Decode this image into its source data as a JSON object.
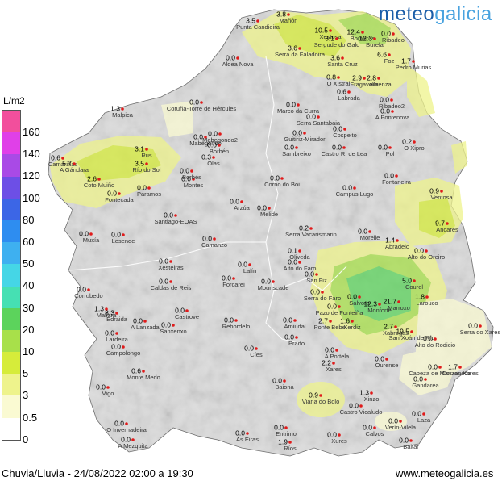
{
  "logo": {
    "part1": "meteo",
    "part2": "galicia"
  },
  "legend": {
    "unit": "L/m2",
    "levels": [
      {
        "label": "160",
        "color": "#f24f9c"
      },
      {
        "label": "140",
        "color": "#e040e8"
      },
      {
        "label": "120",
        "color": "#a94ae6"
      },
      {
        "label": "100",
        "color": "#6d4fe6"
      },
      {
        "label": "80",
        "color": "#3c66e6"
      },
      {
        "label": "60",
        "color": "#2e8df0"
      },
      {
        "label": "50",
        "color": "#3eb0f0"
      },
      {
        "label": "40",
        "color": "#45d6e6"
      },
      {
        "label": "30",
        "color": "#46e0b3"
      },
      {
        "label": "20",
        "color": "#5cd35c"
      },
      {
        "label": "10",
        "color": "#a8e04a"
      },
      {
        "label": "5",
        "color": "#d6ec3a"
      },
      {
        "label": "3",
        "color": "#eef38c"
      },
      {
        "label": "0.5",
        "color": "#fafad2"
      },
      {
        "label": "0",
        "color": "#ffffff"
      }
    ]
  },
  "stations": [
    {
      "name": "Punta Candieira",
      "value": "3.5"
    },
    {
      "name": "Mañón",
      "value": "3.8"
    },
    {
      "name": "Xestosa",
      "value": "10.5"
    },
    {
      "name": "Borreiros",
      "value": "12.4"
    },
    {
      "name": "Serra da Faladoira",
      "value": "3.6"
    },
    {
      "name": "Sergude do Galo",
      "value": "3.1"
    },
    {
      "name": "Burela",
      "value": "12.3"
    },
    {
      "name": "Ribadeo",
      "value": "0.0"
    },
    {
      "name": "Aldea Nova",
      "value": "0.0"
    },
    {
      "name": "Santa Cruz",
      "value": "3.6"
    },
    {
      "name": "Foz",
      "value": "6.6"
    },
    {
      "name": "Pedro Murias",
      "value": "1.7"
    },
    {
      "name": "O Xistral",
      "value": "0.8"
    },
    {
      "name": "Fragavella",
      "value": "2.9"
    },
    {
      "name": "Laurenza",
      "value": "2.8"
    },
    {
      "name": "Labrada",
      "value": "0.6"
    },
    {
      "name": "Mabegondo",
      "value": "0.0"
    },
    {
      "name": "Ribadeo2",
      "value": "0.0"
    },
    {
      "name": "A Pontenova",
      "value": "0.0"
    },
    {
      "name": "Malpica",
      "value": "1.3"
    },
    {
      "name": "Coruña-Torre de Hércules",
      "value": "0.0"
    },
    {
      "name": "Marco da Curra",
      "value": "0.0"
    },
    {
      "name": "Serra Santabaia",
      "value": "0.0"
    },
    {
      "name": "Mabegondo2",
      "value": "0.0"
    },
    {
      "name": "Borbén",
      "value": "0.0"
    },
    {
      "name": "Guitiriz-Mirador",
      "value": "0.0"
    },
    {
      "name": "Cospeito",
      "value": "0.0"
    },
    {
      "name": "O Xipro",
      "value": "0.2"
    },
    {
      "name": "Castro R. de Lea",
      "value": "0.0"
    },
    {
      "name": "Pol",
      "value": "0.0"
    },
    {
      "name": "Camariñas",
      "value": "0.6"
    },
    {
      "name": "A Gándara",
      "value": "5.7"
    },
    {
      "name": "Rus",
      "value": "3.1"
    },
    {
      "name": "Río do Sol",
      "value": "3.5"
    },
    {
      "name": "Olas",
      "value": "0.3"
    },
    {
      "name": "Sambreixo",
      "value": "0.0"
    },
    {
      "name": "Fontaneira",
      "value": "0.0"
    },
    {
      "name": "Coto Muiño",
      "value": "2.6"
    },
    {
      "name": "Fontecada",
      "value": "0.0"
    },
    {
      "name": "Paramos",
      "value": "0.0"
    },
    {
      "name": "Montes",
      "value": "0.0"
    },
    {
      "name": "Borbés",
      "value": "0.0"
    },
    {
      "name": "Corno do Boi",
      "value": "0.0"
    },
    {
      "name": "Campus Lugo",
      "value": "0.0"
    },
    {
      "name": "Ventosa",
      "value": "0.9"
    },
    {
      "name": "Arzúa",
      "value": "0.0"
    },
    {
      "name": "Melide",
      "value": "0.0"
    },
    {
      "name": "Santiago-EOAS",
      "value": "0.0"
    },
    {
      "name": "Ancares",
      "value": "9.7"
    },
    {
      "name": "Serra Vacarismarin",
      "value": "0.2"
    },
    {
      "name": "Muxía",
      "value": "0.0"
    },
    {
      "name": "Lesende",
      "value": "0.0"
    },
    {
      "name": "Camanzo",
      "value": "0.0"
    },
    {
      "name": "Morelle",
      "value": "0.0"
    },
    {
      "name": "Abradelo",
      "value": "1.4"
    },
    {
      "name": "Oliveda",
      "value": "0.1"
    },
    {
      "name": "Alto do Faro",
      "value": "0.0"
    },
    {
      "name": "Alto do Oreiro",
      "value": "0.0"
    },
    {
      "name": "Xesteiras",
      "value": "0.0"
    },
    {
      "name": "Lalín",
      "value": "0.0"
    },
    {
      "name": "San Fiz",
      "value": "0.0"
    },
    {
      "name": "Courel",
      "value": "5.0"
    },
    {
      "name": "Corrubedo",
      "value": "0.0"
    },
    {
      "name": "Caldas de Reis",
      "value": "0.0"
    },
    {
      "name": "Forcarei",
      "value": "0.0"
    },
    {
      "name": "Mouriscade",
      "value": "0.0"
    },
    {
      "name": "Serra do Faro",
      "value": "0.0"
    },
    {
      "name": "Mallara",
      "value": "1.3"
    },
    {
      "name": "Salvora",
      "value": "0.0"
    },
    {
      "name": "Monforte",
      "value": "12.3"
    },
    {
      "name": "Marroxo",
      "value": "21.7"
    },
    {
      "name": "Edraida",
      "value": "8.3"
    },
    {
      "name": "A Lanzada",
      "value": "0.0"
    },
    {
      "name": "Castrove",
      "value": "0.0"
    },
    {
      "name": "Rebordelo",
      "value": "0.0"
    },
    {
      "name": "Amiudal",
      "value": "0.0"
    },
    {
      "name": "Pazo de Fonteiña",
      "value": "0.0"
    },
    {
      "name": "Xerdiz",
      "value": "1.6"
    },
    {
      "name": "Ponte Bebel",
      "value": "2.7"
    },
    {
      "name": "Xabregas",
      "value": "2.7"
    },
    {
      "name": "San Xoán de Río",
      "value": "19.5"
    },
    {
      "name": "Larouco",
      "value": "1.8"
    },
    {
      "name": "A Portela",
      "value": "0.0"
    },
    {
      "name": "Alto do Rodicio",
      "value": "0.0"
    },
    {
      "name": "Serra do Xares",
      "value": "0.0"
    },
    {
      "name": "Lardeira",
      "value": "0.0"
    },
    {
      "name": "Sanxenxo",
      "value": "0.0"
    },
    {
      "name": "Campolongo",
      "value": "0.0"
    },
    {
      "name": "Cíes",
      "value": "0.0"
    },
    {
      "name": "Prado",
      "value": "0.0"
    },
    {
      "name": "Ourense",
      "value": "0.0"
    },
    {
      "name": "Cabeza de Manzaneda",
      "value": "0.0"
    },
    {
      "name": "Corzos Xares",
      "value": "1.7"
    },
    {
      "name": "Xares",
      "value": "2.2"
    },
    {
      "name": "Monte Medo",
      "value": "0.6"
    },
    {
      "name": "Vigo",
      "value": "0.0"
    },
    {
      "name": "Baiona",
      "value": "0.0"
    },
    {
      "name": "Gandaréa",
      "value": "0.0"
    },
    {
      "name": "Viana do Bolo",
      "value": "0.9"
    },
    {
      "name": "Xinzo",
      "value": "1.3"
    },
    {
      "name": "O Invernadeira",
      "value": "0.0"
    },
    {
      "name": "Castro Vicaludo",
      "value": "0.0"
    },
    {
      "name": "Laza",
      "value": "0.0"
    },
    {
      "name": "A Mezquita",
      "value": "0.0"
    },
    {
      "name": "As Eiras",
      "value": "0.0"
    },
    {
      "name": "Entrimo",
      "value": "0.0"
    },
    {
      "name": "Calvos",
      "value": "0.0"
    },
    {
      "name": "Verín-Vilela",
      "value": "0.0"
    },
    {
      "name": "Ríos",
      "value": "1.9"
    },
    {
      "name": "Xures",
      "value": "0.0"
    },
    {
      "name": "Baltar",
      "value": "0.0"
    },
    {
      "name": "A Trabe",
      "value": "0.0"
    }
  ],
  "footer": {
    "caption": "Chuvia/Lluvia - 24/08/2022 02:00 a 19:30",
    "url": "www.meteogalicia.es"
  }
}
